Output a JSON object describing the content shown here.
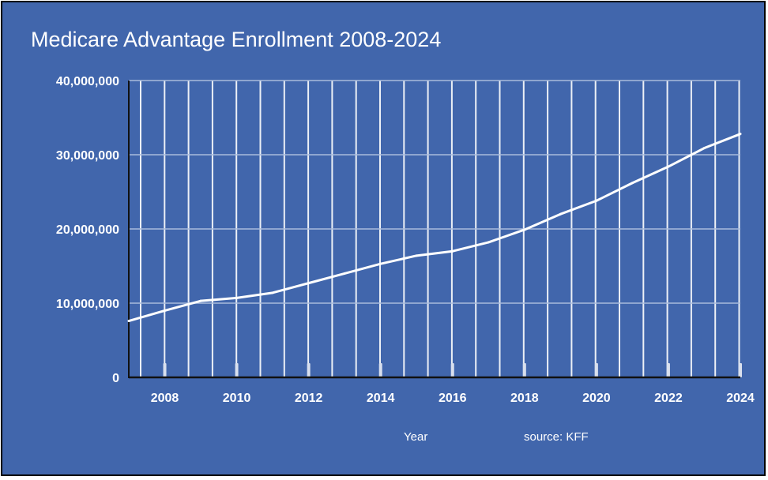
{
  "chart_data": {
    "type": "line",
    "title": "Medicare Advantage Enrollment 2008-2024",
    "xlabel": "Year",
    "ylabel": "",
    "source": "source: KFF",
    "xlim": [
      2007,
      2024
    ],
    "ylim": [
      0,
      40000000
    ],
    "grid": true,
    "legend": "none",
    "x_ticks": [
      "2008",
      "2010",
      "2012",
      "2014",
      "2016",
      "2018",
      "2020",
      "2022",
      "2024"
    ],
    "y_ticks": [
      "0",
      "10,000,000",
      "20,000,000",
      "30,000,000",
      "40,000,000"
    ],
    "colors": {
      "background": "#4166ac",
      "line": "#ffffff",
      "grid": "#ffffff"
    },
    "x": [
      2007,
      2008,
      2009,
      2010,
      2011,
      2012,
      2013,
      2014,
      2015,
      2016,
      2017,
      2018,
      2019,
      2020,
      2021,
      2022,
      2023,
      2024
    ],
    "values": [
      7600000,
      9000000,
      10300000,
      10700000,
      11400000,
      12700000,
      14000000,
      15300000,
      16400000,
      17000000,
      18200000,
      19900000,
      22000000,
      23800000,
      26200000,
      28400000,
      30900000,
      32800000
    ]
  }
}
